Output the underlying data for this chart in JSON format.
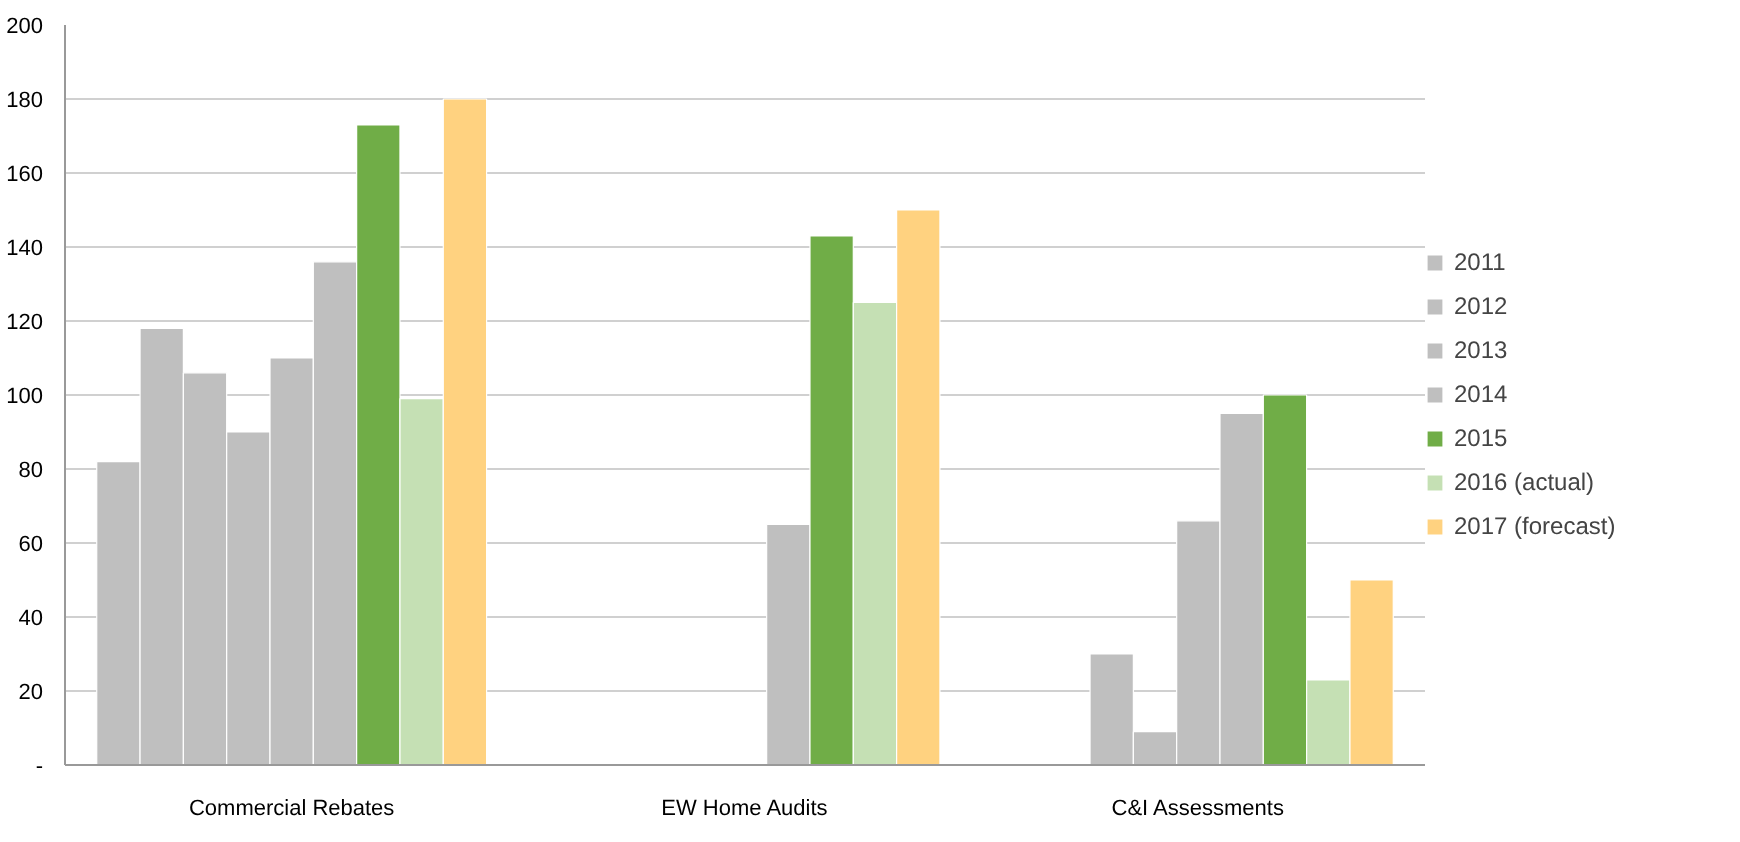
{
  "chart_data": {
    "type": "bar",
    "categories": [
      "Commercial Rebates",
      "EW Home Audits",
      "C&I Assessments"
    ],
    "series": [
      {
        "color": "#bfbfbf",
        "values": [
          82,
          null,
          null
        ]
      },
      {
        "color": "#bfbfbf",
        "values": [
          118,
          null,
          null
        ]
      },
      {
        "name": "2011",
        "color": "#bfbfbf",
        "values": [
          106,
          null,
          30
        ]
      },
      {
        "name": "2012",
        "color": "#bfbfbf",
        "values": [
          90,
          null,
          9
        ]
      },
      {
        "name": "2013",
        "color": "#bfbfbf",
        "values": [
          110,
          null,
          66
        ]
      },
      {
        "name": "2014",
        "color": "#bfbfbf",
        "values": [
          136,
          65,
          95
        ]
      },
      {
        "name": "2015",
        "color": "#70ad47",
        "values": [
          173,
          143,
          100
        ]
      },
      {
        "name": "2016 (actual)",
        "color": "#c5e0b4",
        "values": [
          99,
          125,
          23
        ]
      },
      {
        "name": "2017 (forecast)",
        "color": "#ffd280",
        "values": [
          180,
          150,
          50
        ]
      }
    ],
    "ylim": [
      0,
      200
    ],
    "yticks": [
      {
        "value": 0,
        "label": "-"
      },
      20,
      40,
      60,
      80,
      100,
      120,
      140,
      160,
      180,
      200
    ],
    "grid": "y",
    "legend": "right"
  }
}
